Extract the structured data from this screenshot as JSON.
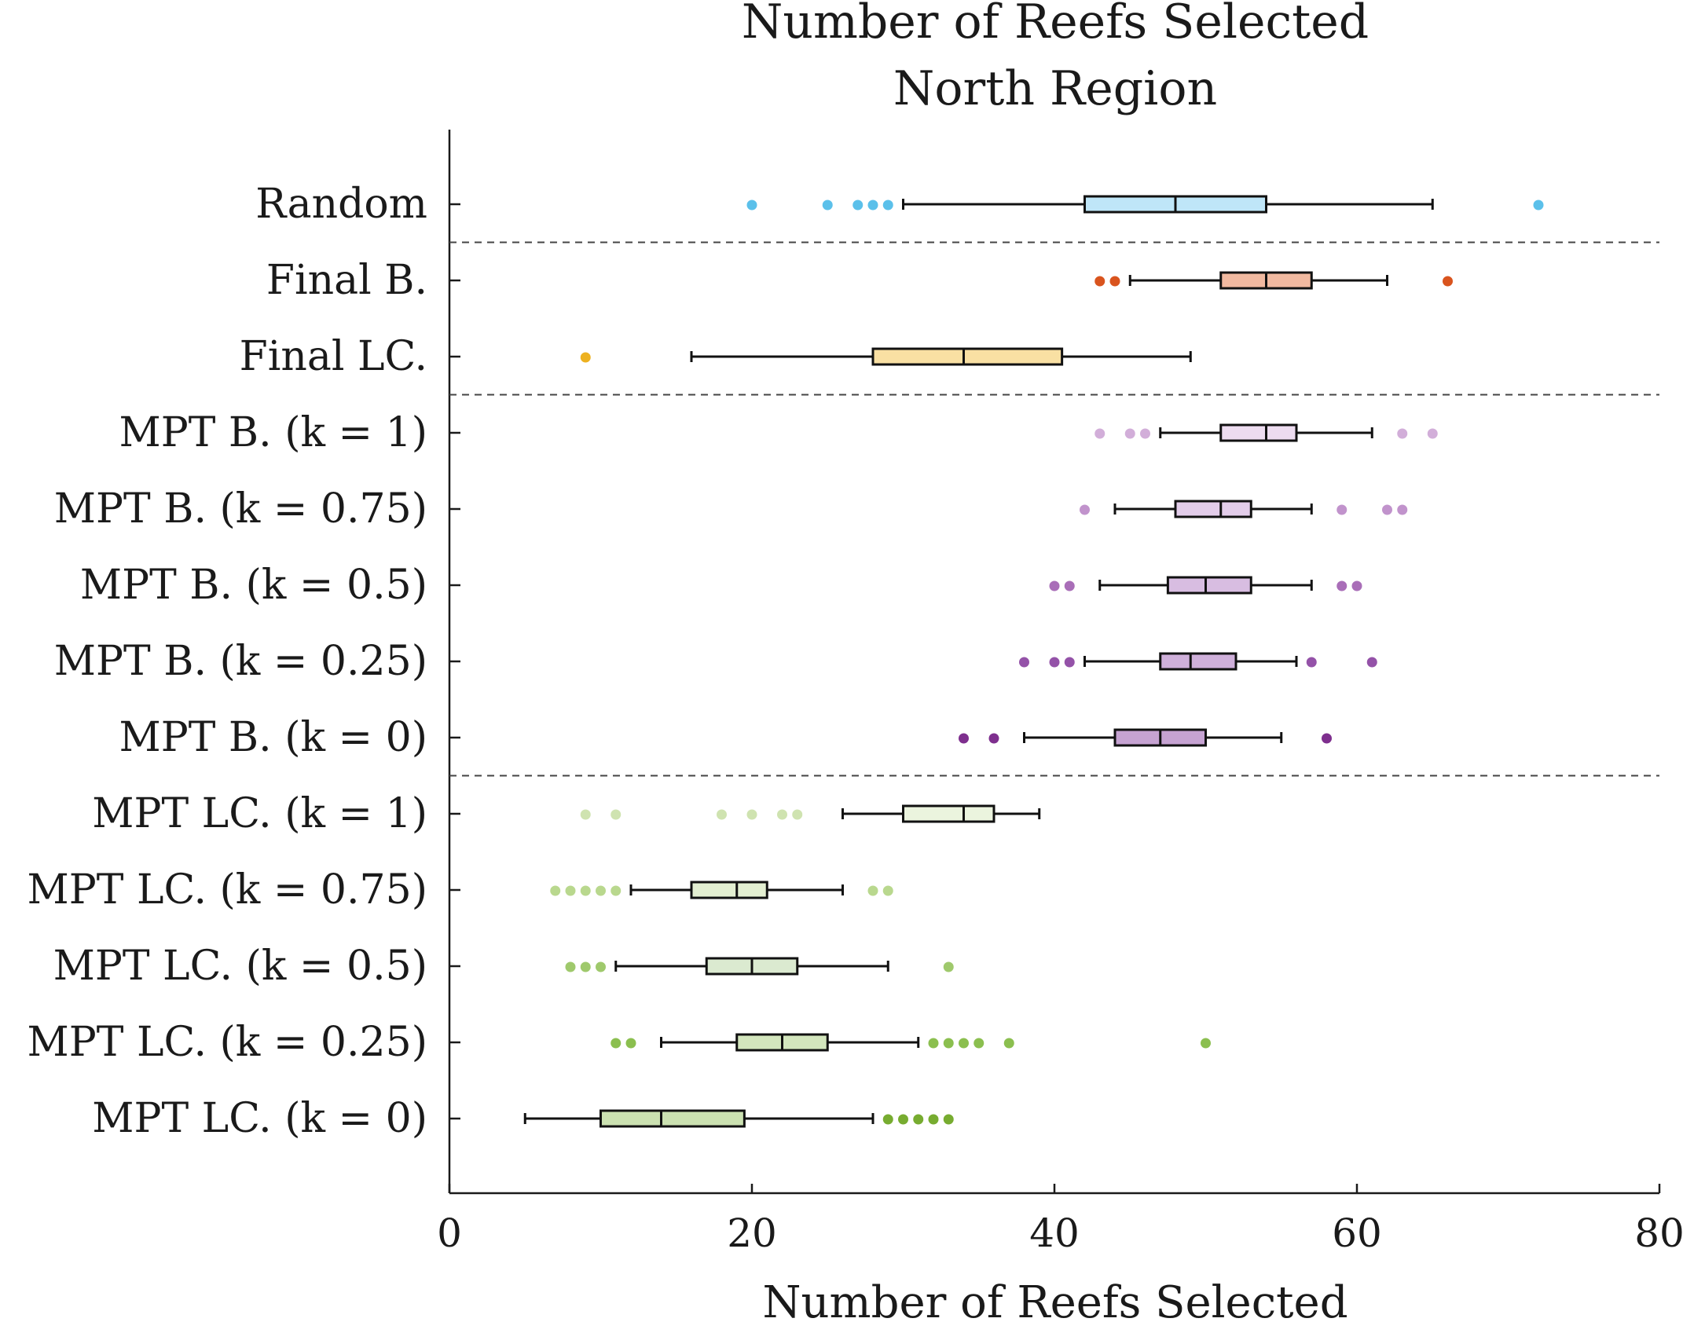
{
  "chart_data": {
    "type": "boxplot",
    "title": "Number of Reefs Selected",
    "subtitle": "North Region",
    "xlabel": "Number of Reefs Selected",
    "xlim": [
      0,
      80
    ],
    "xticks": [
      0,
      20,
      40,
      60,
      80
    ],
    "separators_after": [
      "Random",
      "Final LC.",
      "MPT B. (k = 0)"
    ],
    "series": [
      {
        "name": "Random",
        "color": "#5bc0ea",
        "box_color": "#bfe6f8",
        "whisker_low": 30,
        "q1": 42,
        "median": 48,
        "q3": 54,
        "whisker_high": 65,
        "outliers": [
          20,
          25,
          27,
          28,
          29,
          72
        ]
      },
      {
        "name": "Final B.",
        "color": "#d9541e",
        "box_color": "#f1b9a0",
        "whisker_low": 45,
        "q1": 51,
        "median": 54,
        "q3": 57,
        "whisker_high": 62,
        "outliers": [
          43,
          44,
          66
        ]
      },
      {
        "name": "Final LC.",
        "color": "#edb120",
        "box_color": "#f9e0a3",
        "whisker_low": 16,
        "q1": 28,
        "median": 34,
        "q3": 40.5,
        "whisker_high": 49,
        "outliers": [
          9
        ]
      },
      {
        "name": "MPT B. (k = 1)",
        "color": "#d2aed9",
        "box_color": "#eddcf0",
        "whisker_low": 47,
        "q1": 51,
        "median": 54,
        "q3": 56,
        "whisker_high": 61,
        "outliers": [
          43,
          45,
          46,
          63,
          65
        ]
      },
      {
        "name": "MPT B. (k = 0.75)",
        "color": "#c193cc",
        "box_color": "#e3cdea",
        "whisker_low": 44,
        "q1": 48,
        "median": 51,
        "q3": 53,
        "whisker_high": 57,
        "outliers": [
          42,
          59,
          62,
          63
        ]
      },
      {
        "name": "MPT B. (k = 0.5)",
        "color": "#a96eb8",
        "box_color": "#d8bde1",
        "whisker_low": 43,
        "q1": 47.5,
        "median": 50,
        "q3": 53,
        "whisker_high": 57,
        "outliers": [
          40,
          41,
          59,
          60
        ]
      },
      {
        "name": "MPT B. (k = 0.25)",
        "color": "#9452a8",
        "box_color": "#cfb0da",
        "whisker_low": 42,
        "q1": 47,
        "median": 49,
        "q3": 52,
        "whisker_high": 56,
        "outliers": [
          38,
          40,
          41,
          57,
          61
        ]
      },
      {
        "name": "MPT B. (k = 0)",
        "color": "#7e2f8e",
        "box_color": "#c6a3d2",
        "whisker_low": 38,
        "q1": 44,
        "median": 47,
        "q3": 50,
        "whisker_high": 55,
        "outliers": [
          34,
          36,
          58
        ]
      },
      {
        "name": "MPT LC. (k = 1)",
        "color": "#cfe3b0",
        "box_color": "#ebf4de",
        "whisker_low": 26,
        "q1": 30,
        "median": 34,
        "q3": 36,
        "whisker_high": 39,
        "outliers": [
          9,
          11,
          18,
          20,
          22,
          23
        ]
      },
      {
        "name": "MPT LC. (k = 0.75)",
        "color": "#b9d88e",
        "box_color": "#e3efd1",
        "whisker_low": 12,
        "q1": 16,
        "median": 19,
        "q3": 21,
        "whisker_high": 26,
        "outliers": [
          7,
          8,
          9,
          10,
          11,
          28,
          29
        ]
      },
      {
        "name": "MPT LC. (k = 0.5)",
        "color": "#9fc96c",
        "box_color": "#dbead0",
        "whisker_low": 11,
        "q1": 17,
        "median": 20,
        "q3": 23,
        "whisker_high": 29,
        "outliers": [
          8,
          9,
          10,
          33
        ]
      },
      {
        "name": "MPT LC. (k = 0.25)",
        "color": "#8bbf4f",
        "box_color": "#d3e6bd",
        "whisker_low": 14,
        "q1": 19,
        "median": 22,
        "q3": 25,
        "whisker_high": 31,
        "outliers": [
          11,
          12,
          32,
          33,
          34,
          35,
          37,
          50
        ]
      },
      {
        "name": "MPT LC. (k = 0)",
        "color": "#77ac30",
        "box_color": "#cbe1b1",
        "whisker_low": 5,
        "q1": 10,
        "median": 14,
        "q3": 19.5,
        "whisker_high": 28,
        "outliers": [
          29,
          30,
          31,
          32,
          33
        ]
      }
    ]
  }
}
